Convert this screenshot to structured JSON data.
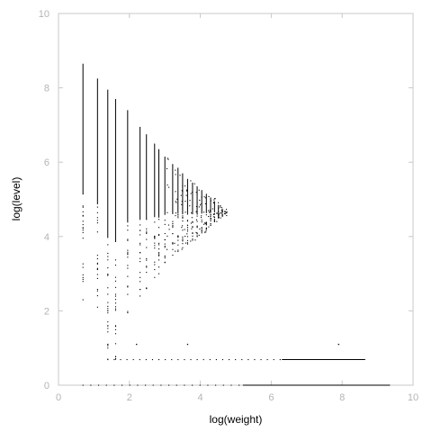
{
  "chart_data": {
    "type": "scatter",
    "title": "",
    "xlabel": "log(weight)",
    "ylabel": "log(level)",
    "xlim": [
      0,
      10
    ],
    "ylim": [
      0,
      10
    ],
    "x_ticks": [
      "0",
      "2",
      "4",
      "6",
      "8",
      "10"
    ],
    "y_ticks": [
      "0",
      "2",
      "4",
      "6",
      "8",
      "10"
    ],
    "grid": false,
    "legend": "none",
    "series": [
      {
        "values": [],
        "columns": [
          {
            "x": 0.69,
            "y_min": 2.3,
            "y_max": 8.65
          },
          {
            "x": 1.1,
            "y_min": 2.1,
            "y_max": 8.25
          },
          {
            "x": 1.39,
            "y_min": 0.7,
            "y_max": 7.95
          },
          {
            "x": 1.61,
            "y_min": 0.7,
            "y_max": 7.7
          },
          {
            "x": 1.95,
            "y_min": 1.95,
            "y_max": 7.4
          },
          {
            "x": 2.3,
            "y_min": 2.4,
            "y_max": 6.95
          },
          {
            "x": 2.48,
            "y_min": 2.6,
            "y_max": 6.75
          },
          {
            "x": 2.71,
            "y_min": 2.9,
            "y_max": 6.5
          },
          {
            "x": 2.83,
            "y_min": 3.0,
            "y_max": 6.35
          },
          {
            "x": 3.0,
            "y_min": 3.3,
            "y_max": 6.15
          },
          {
            "x": 3.22,
            "y_min": 3.5,
            "y_max": 5.95
          },
          {
            "x": 3.37,
            "y_min": 3.6,
            "y_max": 5.85
          },
          {
            "x": 3.5,
            "y_min": 3.7,
            "y_max": 5.7
          },
          {
            "x": 3.64,
            "y_min": 3.8,
            "y_max": 5.55
          },
          {
            "x": 3.78,
            "y_min": 3.9,
            "y_max": 5.45
          },
          {
            "x": 3.91,
            "y_min": 4.0,
            "y_max": 5.35
          },
          {
            "x": 4.04,
            "y_min": 4.1,
            "y_max": 5.25
          },
          {
            "x": 4.17,
            "y_min": 4.2,
            "y_max": 5.15
          },
          {
            "x": 4.29,
            "y_min": 4.3,
            "y_max": 5.05
          },
          {
            "x": 4.4,
            "y_min": 4.4,
            "y_max": 4.95
          },
          {
            "x": 4.51,
            "y_min": 4.5,
            "y_max": 4.85
          },
          {
            "x": 4.62,
            "y_min": 4.55,
            "y_max": 4.75
          }
        ],
        "isolated_points": [
          [
            1.39,
            1.6
          ],
          [
            1.39,
            1.1
          ],
          [
            2.2,
            1.1
          ],
          [
            3.64,
            1.1
          ],
          [
            7.9,
            1.1
          ]
        ],
        "horizontal_lines": [
          {
            "y": 0.69,
            "x_min": 1.39,
            "x_max": 8.65
          },
          {
            "y": 0.0,
            "x_min": 0.69,
            "x_max": 9.35
          }
        ]
      }
    ]
  }
}
